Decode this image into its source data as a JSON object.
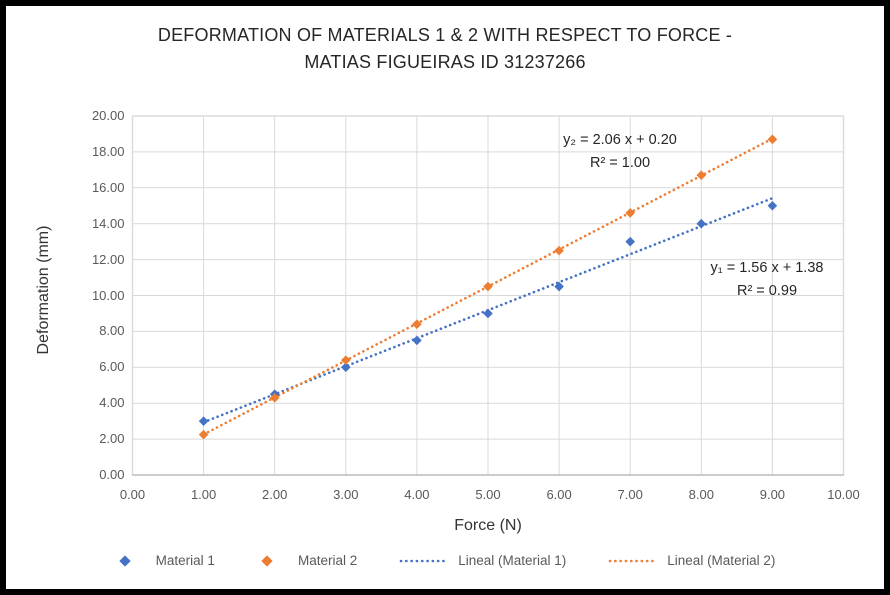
{
  "title": {
    "lines": [
      "DEFORMATION OF MATERIALS 1 & 2 WITH RESPECT TO FORCE -",
      "MATIAS FIGUEIRAS ID 31237266"
    ]
  },
  "chart_data": {
    "type": "scatter",
    "xlabel": "Force (N)",
    "ylabel": "Deformation (mm)",
    "xlim": [
      0,
      10
    ],
    "ylim": [
      0,
      20
    ],
    "x_tick_labels": [
      "0.00",
      "1.00",
      "2.00",
      "3.00",
      "4.00",
      "5.00",
      "6.00",
      "7.00",
      "8.00",
      "9.00",
      "10.00"
    ],
    "x_tick_values": [
      0,
      1,
      2,
      3,
      4,
      5,
      6,
      7,
      8,
      9,
      10
    ],
    "y_tick_labels": [
      "0.00",
      "2.00",
      "4.00",
      "6.00",
      "8.00",
      "10.00",
      "12.00",
      "14.00",
      "16.00",
      "18.00",
      "20.00"
    ],
    "y_tick_values": [
      0,
      2,
      4,
      6,
      8,
      10,
      12,
      14,
      16,
      18,
      20
    ],
    "grid": true,
    "legend_position": "bottom",
    "x": [
      1,
      2,
      3,
      4,
      5,
      6,
      7,
      8,
      9
    ],
    "series": [
      {
        "name": "Material 1",
        "color": "#4472C4",
        "marker": "diamond",
        "values": [
          3.0,
          4.5,
          6.0,
          7.5,
          9.0,
          10.5,
          13.0,
          14.0,
          15.0
        ]
      },
      {
        "name": "Material 2",
        "color": "#ED7D31",
        "marker": "diamond",
        "values": [
          2.25,
          4.3,
          6.4,
          8.4,
          10.5,
          12.5,
          14.6,
          16.7,
          18.7
        ]
      }
    ],
    "trendlines": [
      {
        "name": "Lineal (Material 1)",
        "color": "#4472C4",
        "style": "dotted",
        "slope": 1.56,
        "intercept": 1.38,
        "x_start": 1,
        "x_end": 9,
        "equation": "y₁ = 1.56 x + 1.38",
        "r_squared": "R² = 0.99"
      },
      {
        "name": "Lineal (Material 2)",
        "color": "#ED7D31",
        "style": "dotted",
        "slope": 2.06,
        "intercept": 0.2,
        "x_start": 1,
        "x_end": 9,
        "equation": "y₂ = 2.06 x + 0.20",
        "r_squared": "R² = 1.00"
      }
    ],
    "colors": {
      "gridline": "#D9D9D9",
      "plot_border": "#D9D9D9",
      "axis_line": "#BFBFBF",
      "tick_text": "#595959",
      "title_text": "#262626"
    }
  }
}
